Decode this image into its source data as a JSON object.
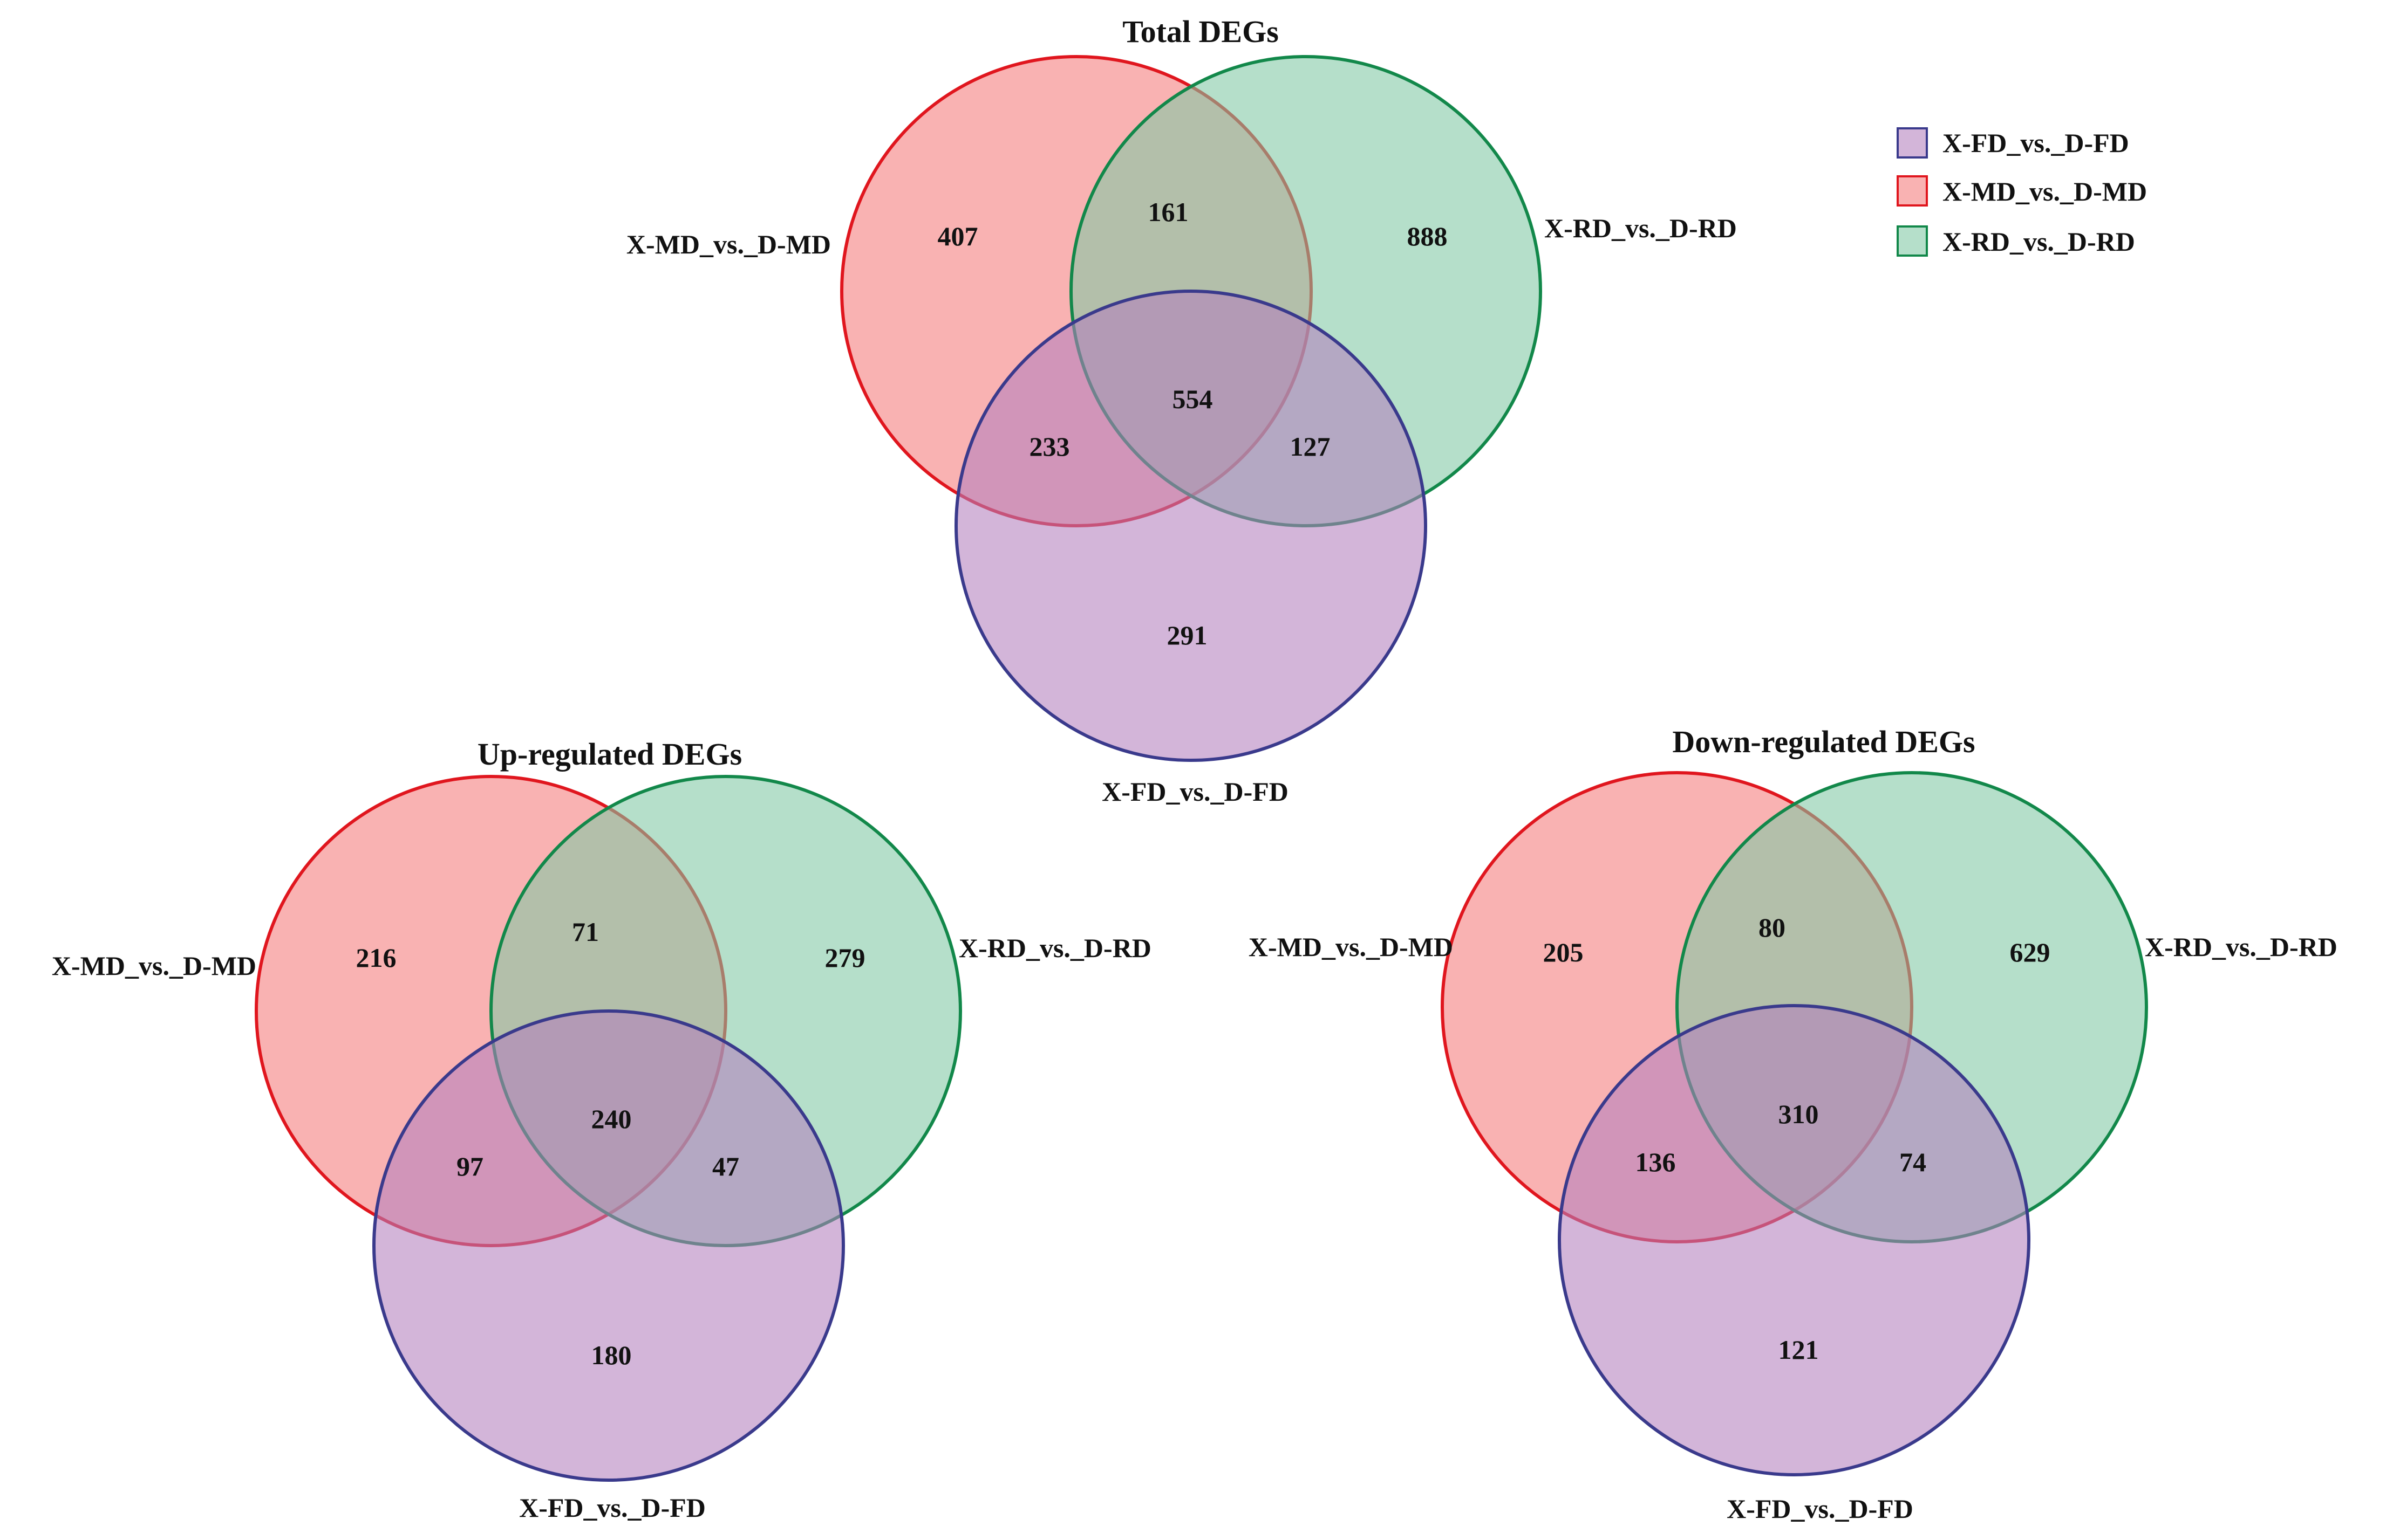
{
  "colors": {
    "fd_fill": "#b47fbd",
    "fd_stroke": "#3a3a8c",
    "md_fill": "#f47b7b",
    "md_stroke": "#e0161e",
    "rd_fill": "#7fc8a4",
    "rd_stroke": "#12884a"
  },
  "legend": {
    "items": [
      {
        "key": "fd",
        "label": "X-FD_vs._D-FD"
      },
      {
        "key": "md",
        "label": "X-MD_vs._D-MD"
      },
      {
        "key": "rd",
        "label": "X-RD_vs._D-RD"
      }
    ]
  },
  "venns": {
    "total": {
      "title": "Total DEGs",
      "labels": {
        "md": "X-MD_vs._D-MD",
        "rd": "X-RD_vs._D-RD",
        "fd": "X-FD_vs._D-FD"
      },
      "counts": {
        "md_only": "407",
        "md_rd": "161",
        "rd_only": "888",
        "all": "554",
        "md_fd": "233",
        "rd_fd": "127",
        "fd_only": "291"
      }
    },
    "up": {
      "title": "Up-regulated DEGs",
      "labels": {
        "md": "X-MD_vs._D-MD",
        "rd": "X-RD_vs._D-RD",
        "fd": "X-FD_vs._D-FD"
      },
      "counts": {
        "md_only": "216",
        "md_rd": "71",
        "rd_only": "279",
        "all": "240",
        "md_fd": "97",
        "rd_fd": "47",
        "fd_only": "180"
      }
    },
    "down": {
      "title": "Down-regulated DEGs",
      "labels": {
        "md": "X-MD_vs._D-MD",
        "rd": "X-RD_vs._D-RD",
        "fd": "X-FD_vs._D-FD"
      },
      "counts": {
        "md_only": "205",
        "md_rd": "80",
        "rd_only": "629",
        "all": "310",
        "md_fd": "136",
        "rd_fd": "74",
        "fd_only": "121"
      }
    }
  }
}
